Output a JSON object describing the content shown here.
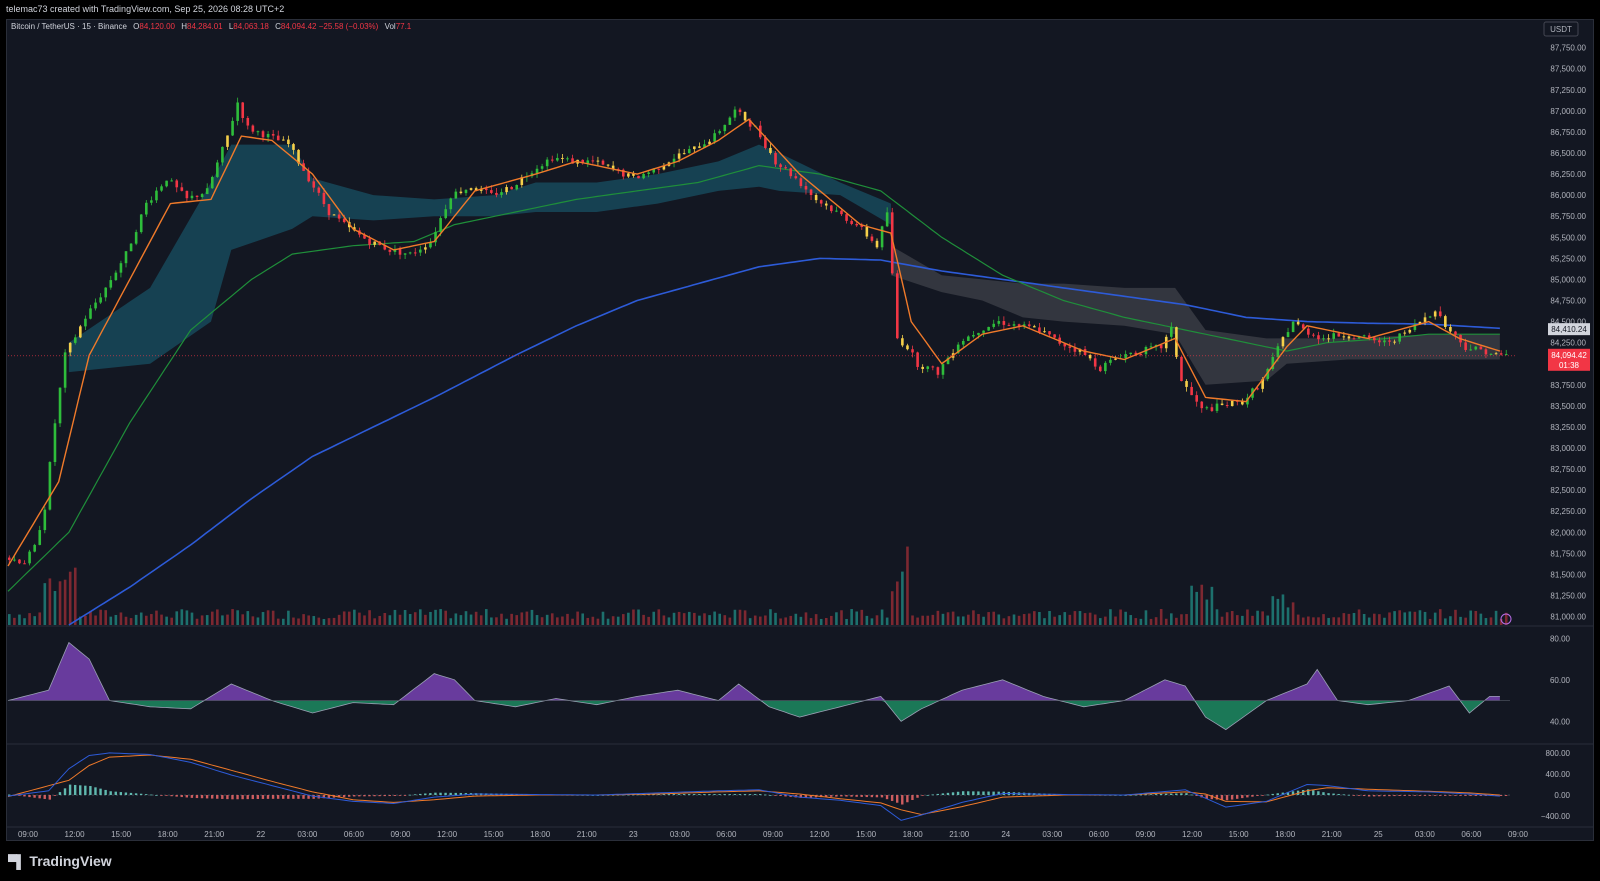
{
  "header": {
    "created_by": "telemac73 created with TradingView.com, Sep 25, 2026 08:28 UTC+2"
  },
  "legend": {
    "symbol": "Bitcoin / TetherUS · 15 · Binance",
    "open_label": "O",
    "open": "84,120.00",
    "high_label": "H",
    "high": "84,284.01",
    "low_label": "L",
    "low": "84,063.18",
    "close_label": "C",
    "close": "84,094.42",
    "change": "−25.58 (−0.03%)",
    "vol_label": "Vol",
    "vol": "77.1"
  },
  "currency_button": "USDT",
  "price_tags": {
    "ma_value": "84,410.24",
    "last_price": "84,094.42",
    "countdown": "01:38"
  },
  "footer": {
    "brand": "TradingView",
    "logo_icon": "tradingview-logo-icon"
  },
  "colors": {
    "background": "#131722",
    "up": "#2ebd3b",
    "down": "#f23645",
    "yellow": "#f5d04a",
    "ema_fast": "#f07a2a",
    "ma_green": "#1f8f3a",
    "ma_blue": "#2d5bd8",
    "cloud_teal": "#17495a",
    "cloud_gray": "#3a3c44"
  },
  "chart_data": {
    "type": "candlestick",
    "symbol": "Bitcoin / TetherUS",
    "interval": "15",
    "exchange": "Binance",
    "price_axis": {
      "ticks": [
        "87,750.00",
        "87,500.00",
        "87,250.00",
        "87,000.00",
        "86,750.00",
        "86,500.00",
        "86,250.00",
        "86,000.00",
        "85,750.00",
        "85,500.00",
        "85,250.00",
        "85,000.00",
        "84,750.00",
        "84,500.00",
        "84,250.00",
        "84,000.00",
        "83,750.00",
        "83,500.00",
        "83,250.00",
        "83,000.00",
        "82,750.00",
        "82,500.00",
        "82,250.00",
        "82,000.00",
        "81,750.00",
        "81,500.00",
        "81,250.00",
        "81,000.00"
      ],
      "range": [
        80900,
        87900
      ]
    },
    "time_axis": {
      "ticks": [
        "09:00",
        "12:00",
        "15:00",
        "18:00",
        "21:00",
        "22",
        "03:00",
        "06:00",
        "09:00",
        "12:00",
        "15:00",
        "18:00",
        "21:00",
        "23",
        "03:00",
        "06:00",
        "09:00",
        "12:00",
        "15:00",
        "18:00",
        "21:00",
        "24",
        "03:00",
        "06:00",
        "09:00",
        "12:00",
        "15:00",
        "18:00",
        "21:00",
        "25",
        "03:00",
        "06:00",
        "09:00"
      ]
    },
    "price_path": [
      [
        0,
        81700
      ],
      [
        2,
        81650
      ],
      [
        3,
        81820
      ],
      [
        4,
        82300
      ],
      [
        5,
        83300
      ],
      [
        6,
        84100
      ],
      [
        8,
        84550
      ],
      [
        10,
        84900
      ],
      [
        12,
        85300
      ],
      [
        14,
        85900
      ],
      [
        16,
        86200
      ],
      [
        18,
        85950
      ],
      [
        20,
        86050
      ],
      [
        22,
        86700
      ],
      [
        23,
        87100
      ],
      [
        24,
        86800
      ],
      [
        26,
        86700
      ],
      [
        28,
        86600
      ],
      [
        30,
        86200
      ],
      [
        32,
        85800
      ],
      [
        34,
        85600
      ],
      [
        36,
        85450
      ],
      [
        38,
        85350
      ],
      [
        40,
        85300
      ],
      [
        42,
        85450
      ],
      [
        44,
        86000
      ],
      [
        46,
        86100
      ],
      [
        48,
        86000
      ],
      [
        50,
        86100
      ],
      [
        52,
        86300
      ],
      [
        54,
        86450
      ],
      [
        56,
        86400
      ],
      [
        58,
        86400
      ],
      [
        60,
        86300
      ],
      [
        62,
        86200
      ],
      [
        64,
        86300
      ],
      [
        66,
        86450
      ],
      [
        68,
        86550
      ],
      [
        70,
        86700
      ],
      [
        72,
        87000
      ],
      [
        74,
        86800
      ],
      [
        76,
        86400
      ],
      [
        78,
        86200
      ],
      [
        80,
        85950
      ],
      [
        82,
        85800
      ],
      [
        84,
        85650
      ],
      [
        86,
        85400
      ],
      [
        87,
        85800
      ],
      [
        88,
        84300
      ],
      [
        89,
        84200
      ],
      [
        90,
        84000
      ],
      [
        92,
        83900
      ],
      [
        94,
        84250
      ],
      [
        96,
        84400
      ],
      [
        98,
        84500
      ],
      [
        100,
        84450
      ],
      [
        102,
        84400
      ],
      [
        104,
        84250
      ],
      [
        106,
        84150
      ],
      [
        108,
        83950
      ],
      [
        110,
        84100
      ],
      [
        112,
        84150
      ],
      [
        114,
        84200
      ],
      [
        115,
        84400
      ],
      [
        116,
        83800
      ],
      [
        118,
        83450
      ],
      [
        120,
        83500
      ],
      [
        122,
        83550
      ],
      [
        124,
        83800
      ],
      [
        126,
        84300
      ],
      [
        127,
        84500
      ],
      [
        128,
        84400
      ],
      [
        130,
        84300
      ],
      [
        132,
        84350
      ],
      [
        134,
        84300
      ],
      [
        136,
        84250
      ],
      [
        138,
        84350
      ],
      [
        140,
        84550
      ],
      [
        141,
        84650
      ],
      [
        142,
        84450
      ],
      [
        144,
        84200
      ],
      [
        146,
        84150
      ],
      [
        147,
        84100
      ]
    ],
    "ema_fast_path": [
      [
        0,
        81600
      ],
      [
        5,
        82600
      ],
      [
        8,
        84100
      ],
      [
        12,
        85000
      ],
      [
        16,
        85900
      ],
      [
        20,
        85950
      ],
      [
        23,
        86700
      ],
      [
        26,
        86650
      ],
      [
        30,
        86250
      ],
      [
        34,
        85600
      ],
      [
        38,
        85350
      ],
      [
        42,
        85450
      ],
      [
        46,
        86050
      ],
      [
        52,
        86250
      ],
      [
        56,
        86400
      ],
      [
        62,
        86250
      ],
      [
        66,
        86400
      ],
      [
        70,
        86650
      ],
      [
        73,
        86900
      ],
      [
        78,
        86250
      ],
      [
        84,
        85650
      ],
      [
        87,
        85550
      ],
      [
        89,
        84500
      ],
      [
        92,
        84000
      ],
      [
        96,
        84350
      ],
      [
        100,
        84450
      ],
      [
        106,
        84150
      ],
      [
        110,
        84050
      ],
      [
        115,
        84300
      ],
      [
        118,
        83600
      ],
      [
        122,
        83550
      ],
      [
        126,
        84200
      ],
      [
        128,
        84450
      ],
      [
        134,
        84300
      ],
      [
        140,
        84500
      ],
      [
        143,
        84300
      ],
      [
        147,
        84150
      ]
    ],
    "ma_green_path": [
      [
        0,
        81300
      ],
      [
        6,
        82000
      ],
      [
        12,
        83300
      ],
      [
        18,
        84400
      ],
      [
        24,
        85000
      ],
      [
        28,
        85300
      ],
      [
        34,
        85400
      ],
      [
        40,
        85450
      ],
      [
        44,
        85650
      ],
      [
        50,
        85800
      ],
      [
        56,
        85950
      ],
      [
        62,
        86050
      ],
      [
        68,
        86150
      ],
      [
        74,
        86350
      ],
      [
        80,
        86250
      ],
      [
        86,
        86050
      ],
      [
        92,
        85500
      ],
      [
        98,
        85050
      ],
      [
        104,
        84750
      ],
      [
        110,
        84550
      ],
      [
        116,
        84400
      ],
      [
        122,
        84250
      ],
      [
        126,
        84150
      ],
      [
        130,
        84250
      ],
      [
        136,
        84300
      ],
      [
        140,
        84350
      ],
      [
        147,
        84350
      ]
    ],
    "ma_blue_path": [
      [
        6,
        80900
      ],
      [
        12,
        81350
      ],
      [
        18,
        81850
      ],
      [
        24,
        82400
      ],
      [
        30,
        82900
      ],
      [
        36,
        83250
      ],
      [
        42,
        83600
      ],
      [
        50,
        84100
      ],
      [
        56,
        84450
      ],
      [
        62,
        84750
      ],
      [
        68,
        84950
      ],
      [
        74,
        85150
      ],
      [
        80,
        85250
      ],
      [
        86,
        85230
      ],
      [
        92,
        85100
      ],
      [
        98,
        85000
      ],
      [
        104,
        84900
      ],
      [
        110,
        84800
      ],
      [
        116,
        84700
      ],
      [
        122,
        84550
      ],
      [
        128,
        84500
      ],
      [
        134,
        84480
      ],
      [
        140,
        84470
      ],
      [
        147,
        84420
      ]
    ],
    "cloud_teal": [
      [
        6,
        84250,
        83900
      ],
      [
        14,
        84900,
        84000
      ],
      [
        20,
        86150,
        84500
      ],
      [
        22,
        86600,
        85350
      ],
      [
        28,
        86600,
        85600
      ],
      [
        30,
        86200,
        85750
      ],
      [
        36,
        86000,
        85700
      ],
      [
        42,
        85950,
        85750
      ],
      [
        48,
        86000,
        85750
      ],
      [
        52,
        86150,
        85800
      ],
      [
        58,
        86150,
        85800
      ],
      [
        64,
        86250,
        85900
      ],
      [
        70,
        86400,
        86050
      ],
      [
        74,
        86600,
        86100
      ],
      [
        76,
        86500,
        86050
      ],
      [
        82,
        86150,
        86000
      ],
      [
        87,
        85900,
        85650
      ]
    ],
    "cloud_gray": [
      [
        87,
        85400,
        85050
      ],
      [
        92,
        85050,
        84850
      ],
      [
        96,
        85000,
        84750
      ],
      [
        100,
        84950,
        84550
      ],
      [
        104,
        84950,
        84500
      ],
      [
        110,
        84900,
        84450
      ],
      [
        115,
        84900,
        84350
      ],
      [
        118,
        84400,
        83750
      ],
      [
        124,
        84300,
        83800
      ],
      [
        126,
        84300,
        84000
      ],
      [
        132,
        84300,
        84050
      ],
      [
        140,
        84350,
        84050
      ],
      [
        147,
        84350,
        84050
      ]
    ],
    "volume_pattern": "low baseline with spikes at session start and near 15:00 on Sep 23",
    "rsi_axis": {
      "ticks": [
        "80.00",
        "60.00",
        "40.00"
      ],
      "range": [
        30,
        85
      ],
      "midline": 50
    },
    "rsi_path": [
      [
        0,
        50
      ],
      [
        4,
        55
      ],
      [
        6,
        78
      ],
      [
        8,
        70
      ],
      [
        10,
        50
      ],
      [
        14,
        47
      ],
      [
        18,
        46
      ],
      [
        22,
        58
      ],
      [
        26,
        50
      ],
      [
        30,
        44
      ],
      [
        34,
        49
      ],
      [
        38,
        48
      ],
      [
        42,
        63
      ],
      [
        44,
        60
      ],
      [
        46,
        50
      ],
      [
        50,
        47
      ],
      [
        54,
        51
      ],
      [
        58,
        48
      ],
      [
        62,
        52
      ],
      [
        66,
        55
      ],
      [
        70,
        50
      ],
      [
        72,
        58
      ],
      [
        75,
        47
      ],
      [
        78,
        42
      ],
      [
        82,
        47
      ],
      [
        86,
        52
      ],
      [
        88,
        40
      ],
      [
        90,
        46
      ],
      [
        94,
        55
      ],
      [
        98,
        60
      ],
      [
        102,
        52
      ],
      [
        106,
        47
      ],
      [
        110,
        50
      ],
      [
        114,
        60
      ],
      [
        116,
        57
      ],
      [
        118,
        42
      ],
      [
        120,
        36
      ],
      [
        124,
        50
      ],
      [
        128,
        58
      ],
      [
        129,
        65
      ],
      [
        131,
        50
      ],
      [
        134,
        48
      ],
      [
        138,
        50
      ],
      [
        142,
        57
      ],
      [
        144,
        44
      ],
      [
        146,
        52
      ],
      [
        147,
        52
      ]
    ],
    "macd_axis": {
      "ticks": [
        "800.00",
        "400.00",
        "0.00",
        "−400.00"
      ],
      "range": [
        -550,
        950
      ]
    },
    "macd_line": [
      [
        0,
        -20
      ],
      [
        4,
        80
      ],
      [
        6,
        500
      ],
      [
        8,
        750
      ],
      [
        10,
        800
      ],
      [
        14,
        770
      ],
      [
        18,
        620
      ],
      [
        22,
        380
      ],
      [
        26,
        180
      ],
      [
        30,
        -20
      ],
      [
        34,
        -120
      ],
      [
        38,
        -160
      ],
      [
        42,
        -40
      ],
      [
        46,
        20
      ],
      [
        52,
        10
      ],
      [
        58,
        0
      ],
      [
        64,
        40
      ],
      [
        70,
        80
      ],
      [
        74,
        100
      ],
      [
        78,
        -40
      ],
      [
        82,
        -100
      ],
      [
        86,
        -200
      ],
      [
        88,
        -480
      ],
      [
        90,
        -380
      ],
      [
        94,
        -140
      ],
      [
        98,
        30
      ],
      [
        104,
        10
      ],
      [
        110,
        0
      ],
      [
        116,
        100
      ],
      [
        118,
        -60
      ],
      [
        120,
        -230
      ],
      [
        124,
        -120
      ],
      [
        128,
        200
      ],
      [
        130,
        180
      ],
      [
        134,
        80
      ],
      [
        140,
        60
      ],
      [
        144,
        20
      ],
      [
        147,
        -20
      ]
    ],
    "signal_line": [
      [
        0,
        -30
      ],
      [
        6,
        280
      ],
      [
        8,
        560
      ],
      [
        10,
        720
      ],
      [
        14,
        760
      ],
      [
        18,
        680
      ],
      [
        22,
        470
      ],
      [
        26,
        260
      ],
      [
        30,
        60
      ],
      [
        34,
        -90
      ],
      [
        38,
        -140
      ],
      [
        42,
        -90
      ],
      [
        46,
        -20
      ],
      [
        52,
        0
      ],
      [
        58,
        0
      ],
      [
        64,
        20
      ],
      [
        70,
        60
      ],
      [
        74,
        80
      ],
      [
        78,
        20
      ],
      [
        82,
        -70
      ],
      [
        86,
        -150
      ],
      [
        88,
        -280
      ],
      [
        90,
        -370
      ],
      [
        94,
        -220
      ],
      [
        98,
        -40
      ],
      [
        104,
        0
      ],
      [
        110,
        0
      ],
      [
        116,
        60
      ],
      [
        118,
        20
      ],
      [
        120,
        -120
      ],
      [
        124,
        -130
      ],
      [
        128,
        80
      ],
      [
        130,
        140
      ],
      [
        134,
        110
      ],
      [
        140,
        70
      ],
      [
        144,
        40
      ],
      [
        147,
        0
      ]
    ]
  }
}
